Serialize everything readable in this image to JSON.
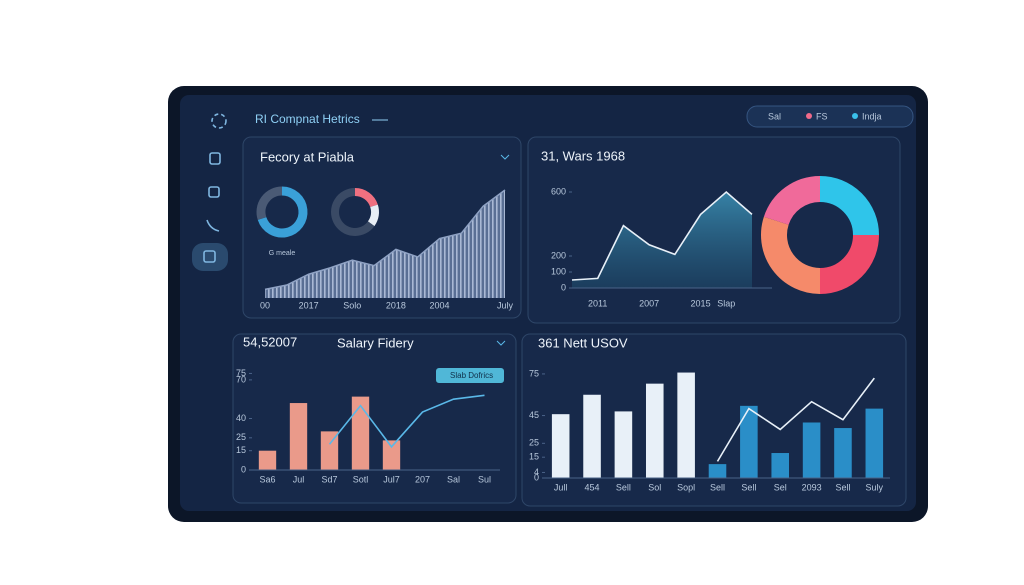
{
  "app": {
    "title": "RI Compnat Hetrics",
    "filters": [
      "Sal",
      "FS",
      "Indja"
    ]
  },
  "chart_data": [
    {
      "type": "area",
      "title": "Fecory at Piabla",
      "color": "#8fa2c4",
      "categories": [
        "00",
        null,
        "2017",
        null,
        "Solo",
        null,
        "2018",
        null,
        "2004",
        null,
        null,
        "July"
      ],
      "values": [
        8,
        12,
        22,
        28,
        35,
        30,
        45,
        38,
        55,
        60,
        85,
        100
      ],
      "ylim": [
        0,
        100
      ]
    },
    {
      "type": "pie",
      "caption": "G meale",
      "categories": [
        null,
        null
      ],
      "values": [
        70,
        30
      ],
      "colors": [
        "#3aa0d8",
        "#4a5a75"
      ]
    },
    {
      "type": "pie",
      "categories": [
        null,
        null,
        null
      ],
      "values": [
        20,
        15,
        65
      ],
      "colors": [
        "#f07080",
        "#e8eef5",
        "#3a4a65"
      ]
    },
    {
      "type": "line",
      "title": "31, Wars 1968",
      "color": "#e8f0f8",
      "fill": "#2f6f8f",
      "categories": [
        null,
        "2011",
        null,
        "2007",
        null,
        "2015",
        "Slap",
        null
      ],
      "values": [
        50,
        60,
        390,
        270,
        210,
        460,
        600,
        460
      ],
      "ylim": [
        0,
        600
      ],
      "yticks": [
        0,
        100,
        200,
        600
      ]
    },
    {
      "type": "pie",
      "categories": [
        null,
        null,
        null,
        null
      ],
      "values": [
        25,
        25,
        30,
        20
      ],
      "colors": [
        "#2fc5ea",
        "#f04a6a",
        "#f58a6a",
        "#f06a9a"
      ]
    },
    {
      "type": "combo",
      "value": "54,52007",
      "title": "Salary Fidery",
      "badge": "Slab Dofrics",
      "categories": [
        "Sa6",
        "Jul",
        "Sd7",
        "Sotl",
        "Jul7",
        "207",
        "Sal",
        "Sul"
      ],
      "series": [
        {
          "kind": "bar",
          "color": "#ea9a8a",
          "values": [
            15,
            52,
            30,
            57,
            23,
            null,
            null,
            null
          ]
        },
        {
          "kind": "line",
          "color": "#5ab8e8",
          "values": [
            null,
            null,
            20,
            50,
            18,
            45,
            55,
            58
          ]
        }
      ],
      "ylim": [
        0,
        80
      ],
      "yticks": [
        0,
        15,
        25,
        40,
        70,
        75
      ]
    },
    {
      "type": "combo",
      "title": "361 Nett USOV",
      "categories": [
        "Jull",
        "454",
        "Sell",
        "Sol",
        "Sopl",
        "Sell",
        "Sell",
        "Sel",
        "2093",
        "Sell",
        "Suly"
      ],
      "series": [
        {
          "kind": "bar",
          "color": "#e8f0f8",
          "values": [
            46,
            60,
            48,
            68,
            76,
            null,
            null,
            null,
            null,
            null,
            null
          ]
        },
        {
          "kind": "bar",
          "color": "#2a8ec8",
          "values": [
            null,
            null,
            null,
            null,
            null,
            10,
            52,
            18,
            40,
            36,
            50
          ]
        },
        {
          "kind": "line",
          "color": "#e8f0f8",
          "values": [
            null,
            null,
            null,
            null,
            null,
            12,
            50,
            35,
            55,
            42,
            72
          ]
        }
      ],
      "ylim": [
        0,
        80
      ],
      "yticks": [
        0,
        4,
        15,
        25,
        45,
        75
      ]
    }
  ]
}
